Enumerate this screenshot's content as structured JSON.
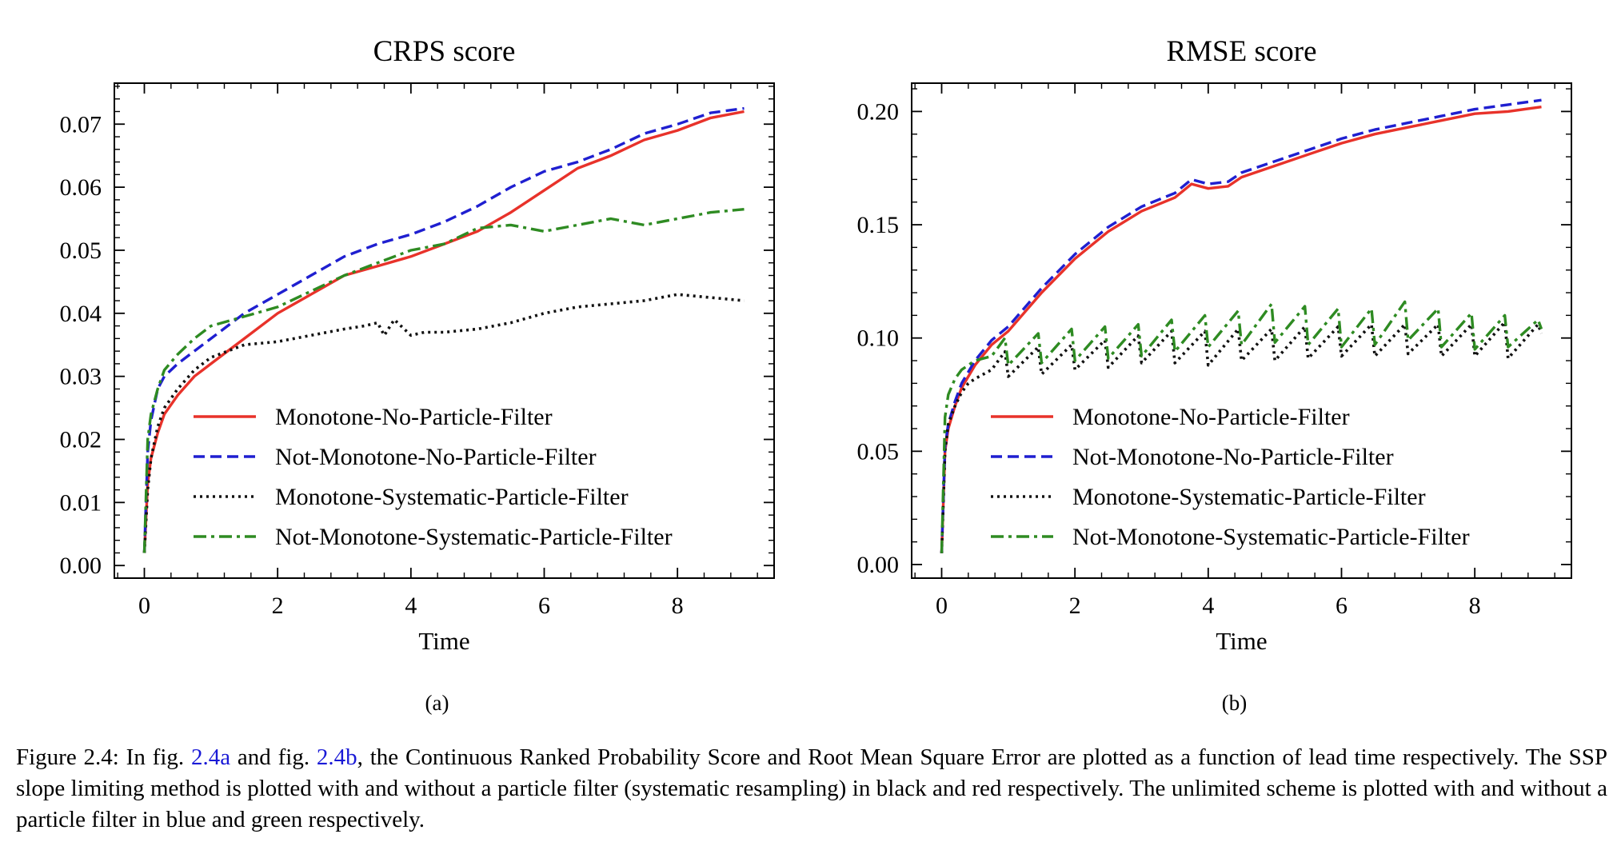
{
  "figure": {
    "caption_prefix": "Figure 2.4: In fig. ",
    "ref_a": "2.4a",
    "caption_mid": " and fig. ",
    "ref_b": "2.4b",
    "caption_rest": ", the Continuous Ranked Probability Score and Root Mean Square Error are plotted as a function of lead time respectively. The SSP slope limiting method is plotted with and without a particle filter (systematic resampling) in black and red respectively. The unlimited scheme is plotted with and without a particle filter in blue and green respectively."
  },
  "colors": {
    "monotone_no_pf": "#e8322a",
    "not_monotone_no_pf": "#1f1fd0",
    "monotone_systematic_pf": "#111111",
    "not_monotone_systematic_pf": "#2e8b22"
  },
  "chart_data": [
    {
      "type": "line",
      "title": "CRPS score",
      "xlabel": "Time",
      "ylabel": "",
      "sublabel": "(a)",
      "xlim": [
        -0.45,
        9.45
      ],
      "ylim": [
        -0.002,
        0.0765
      ],
      "xticks": [
        0,
        2,
        4,
        6,
        8
      ],
      "xtick_labels": [
        "0",
        "2",
        "4",
        "6",
        "8"
      ],
      "yticks": [
        0.0,
        0.01,
        0.02,
        0.03,
        0.04,
        0.05,
        0.06,
        0.07
      ],
      "ytick_labels": [
        "0.00",
        "0.01",
        "0.02",
        "0.03",
        "0.04",
        "0.05",
        "0.06",
        "0.07"
      ],
      "grid": false,
      "legend_position": "lower-right",
      "series": [
        {
          "name": "Monotone-No-Particle-Filter",
          "color_key": "monotone_no_pf",
          "dash": "solid",
          "x": [
            0.0,
            0.05,
            0.1,
            0.2,
            0.3,
            0.5,
            0.75,
            1.0,
            1.5,
            2.0,
            2.5,
            3.0,
            3.5,
            4.0,
            4.5,
            5.0,
            5.5,
            6.0,
            6.5,
            7.0,
            7.5,
            8.0,
            8.5,
            9.0
          ],
          "y": [
            0.002,
            0.013,
            0.017,
            0.021,
            0.024,
            0.027,
            0.03,
            0.032,
            0.036,
            0.04,
            0.043,
            0.046,
            0.0475,
            0.049,
            0.051,
            0.053,
            0.056,
            0.0595,
            0.063,
            0.065,
            0.0675,
            0.069,
            0.071,
            0.072
          ]
        },
        {
          "name": "Not-Monotone-No-Particle-Filter",
          "color_key": "not_monotone_no_pf",
          "dash": "dashed",
          "x": [
            0.0,
            0.05,
            0.1,
            0.2,
            0.3,
            0.5,
            0.75,
            1.0,
            1.5,
            2.0,
            2.5,
            3.0,
            3.5,
            4.0,
            4.5,
            5.0,
            5.5,
            6.0,
            6.5,
            7.0,
            7.5,
            8.0,
            8.5,
            9.0
          ],
          "y": [
            0.002,
            0.018,
            0.023,
            0.028,
            0.03,
            0.032,
            0.034,
            0.036,
            0.04,
            0.043,
            0.046,
            0.049,
            0.051,
            0.0525,
            0.0545,
            0.057,
            0.06,
            0.0625,
            0.064,
            0.066,
            0.0685,
            0.07,
            0.0718,
            0.0725
          ]
        },
        {
          "name": "Monotone-Systematic-Particle-Filter",
          "color_key": "monotone_systematic_pf",
          "dash": "dotted",
          "x": [
            0.0,
            0.05,
            0.1,
            0.2,
            0.3,
            0.5,
            0.75,
            1.0,
            1.5,
            2.0,
            2.5,
            3.0,
            3.3,
            3.5,
            3.6,
            3.75,
            3.9,
            4.0,
            4.2,
            4.5,
            5.0,
            5.5,
            6.0,
            6.5,
            7.0,
            7.5,
            8.0,
            8.5,
            9.0
          ],
          "y": [
            0.002,
            0.012,
            0.017,
            0.022,
            0.025,
            0.028,
            0.031,
            0.033,
            0.035,
            0.0355,
            0.0365,
            0.0375,
            0.038,
            0.0385,
            0.0365,
            0.039,
            0.0375,
            0.0365,
            0.037,
            0.037,
            0.0375,
            0.0385,
            0.04,
            0.041,
            0.0415,
            0.042,
            0.043,
            0.0425,
            0.042
          ]
        },
        {
          "name": "Not-Monotone-Systematic-Particle-Filter",
          "color_key": "not_monotone_systematic_pf",
          "dash": "dashdot",
          "x": [
            0.0,
            0.05,
            0.1,
            0.2,
            0.3,
            0.5,
            0.75,
            1.0,
            1.5,
            2.0,
            2.5,
            3.0,
            3.5,
            4.0,
            4.5,
            5.0,
            5.5,
            6.0,
            6.5,
            7.0,
            7.5,
            8.0,
            8.5,
            9.0
          ],
          "y": [
            0.002,
            0.02,
            0.024,
            0.028,
            0.031,
            0.0335,
            0.036,
            0.038,
            0.0395,
            0.041,
            0.0435,
            0.046,
            0.048,
            0.05,
            0.051,
            0.0535,
            0.054,
            0.053,
            0.054,
            0.055,
            0.054,
            0.055,
            0.056,
            0.0565
          ]
        }
      ]
    },
    {
      "type": "line",
      "title": "RMSE score",
      "xlabel": "Time",
      "ylabel": "",
      "sublabel": "(b)",
      "xlim": [
        -0.45,
        9.45
      ],
      "ylim": [
        -0.006,
        0.2125
      ],
      "xticks": [
        0,
        2,
        4,
        6,
        8
      ],
      "xtick_labels": [
        "0",
        "2",
        "4",
        "6",
        "8"
      ],
      "yticks": [
        0.0,
        0.05,
        0.1,
        0.15,
        0.2
      ],
      "ytick_labels": [
        "0.00",
        "0.05",
        "0.10",
        "0.15",
        "0.20"
      ],
      "grid": false,
      "legend_position": "lower-right",
      "series": [
        {
          "name": "Monotone-No-Particle-Filter",
          "color_key": "monotone_no_pf",
          "dash": "solid",
          "x": [
            0.0,
            0.05,
            0.1,
            0.2,
            0.3,
            0.5,
            0.75,
            1.0,
            1.5,
            2.0,
            2.5,
            3.0,
            3.5,
            3.75,
            4.0,
            4.3,
            4.5,
            5.0,
            5.5,
            6.0,
            6.5,
            7.0,
            7.5,
            8.0,
            8.5,
            9.0
          ],
          "y": [
            0.005,
            0.05,
            0.06,
            0.07,
            0.078,
            0.088,
            0.097,
            0.103,
            0.12,
            0.135,
            0.147,
            0.156,
            0.162,
            0.168,
            0.166,
            0.167,
            0.171,
            0.176,
            0.181,
            0.186,
            0.19,
            0.193,
            0.196,
            0.199,
            0.2,
            0.202
          ]
        },
        {
          "name": "Not-Monotone-No-Particle-Filter",
          "color_key": "not_monotone_no_pf",
          "dash": "dashed",
          "x": [
            0.0,
            0.05,
            0.1,
            0.2,
            0.3,
            0.5,
            0.75,
            1.0,
            1.5,
            2.0,
            2.5,
            3.0,
            3.5,
            3.75,
            4.0,
            4.3,
            4.5,
            5.0,
            5.5,
            6.0,
            6.5,
            7.0,
            7.5,
            8.0,
            8.5,
            9.0
          ],
          "y": [
            0.005,
            0.052,
            0.062,
            0.072,
            0.08,
            0.09,
            0.099,
            0.105,
            0.122,
            0.137,
            0.149,
            0.158,
            0.164,
            0.17,
            0.168,
            0.169,
            0.173,
            0.178,
            0.183,
            0.188,
            0.192,
            0.195,
            0.198,
            0.201,
            0.203,
            0.205
          ]
        },
        {
          "name": "Monotone-Systematic-Particle-Filter",
          "color_key": "monotone_systematic_pf",
          "dash": "dotted",
          "x": [
            0.0,
            0.05,
            0.1,
            0.2,
            0.3,
            0.4,
            0.5,
            0.75,
            0.95,
            1.0,
            1.45,
            1.5,
            1.95,
            2.0,
            2.45,
            2.5,
            2.95,
            3.0,
            3.45,
            3.5,
            3.95,
            4.0,
            4.45,
            4.5,
            4.95,
            5.0,
            5.45,
            5.5,
            5.95,
            6.0,
            6.45,
            6.5,
            6.95,
            7.0,
            7.45,
            7.5,
            7.95,
            8.0,
            8.45,
            8.5,
            8.95,
            9.0
          ],
          "y": [
            0.005,
            0.05,
            0.062,
            0.07,
            0.076,
            0.08,
            0.082,
            0.086,
            0.094,
            0.083,
            0.096,
            0.084,
            0.097,
            0.086,
            0.099,
            0.087,
            0.101,
            0.089,
            0.103,
            0.089,
            0.103,
            0.088,
            0.104,
            0.09,
            0.104,
            0.09,
            0.105,
            0.091,
            0.105,
            0.092,
            0.106,
            0.092,
            0.106,
            0.093,
            0.106,
            0.092,
            0.106,
            0.092,
            0.107,
            0.091,
            0.106,
            0.102
          ]
        },
        {
          "name": "Not-Monotone-Systematic-Particle-Filter",
          "color_key": "not_monotone_systematic_pf",
          "dash": "dashdot",
          "x": [
            0.0,
            0.05,
            0.1,
            0.2,
            0.3,
            0.4,
            0.5,
            0.75,
            0.95,
            1.0,
            1.45,
            1.5,
            1.95,
            2.0,
            2.45,
            2.5,
            2.95,
            3.0,
            3.45,
            3.5,
            3.95,
            4.0,
            4.45,
            4.5,
            4.95,
            5.0,
            5.45,
            5.5,
            5.95,
            6.0,
            6.45,
            6.5,
            6.95,
            7.0,
            7.45,
            7.5,
            7.95,
            8.0,
            8.45,
            8.5,
            8.95,
            9.0
          ],
          "y": [
            0.005,
            0.065,
            0.075,
            0.082,
            0.086,
            0.088,
            0.09,
            0.092,
            0.1,
            0.088,
            0.102,
            0.089,
            0.104,
            0.09,
            0.105,
            0.091,
            0.106,
            0.092,
            0.108,
            0.094,
            0.11,
            0.096,
            0.112,
            0.097,
            0.115,
            0.098,
            0.114,
            0.097,
            0.113,
            0.096,
            0.113,
            0.097,
            0.116,
            0.099,
            0.113,
            0.096,
            0.111,
            0.095,
            0.11,
            0.096,
            0.108,
            0.104
          ]
        }
      ]
    }
  ]
}
